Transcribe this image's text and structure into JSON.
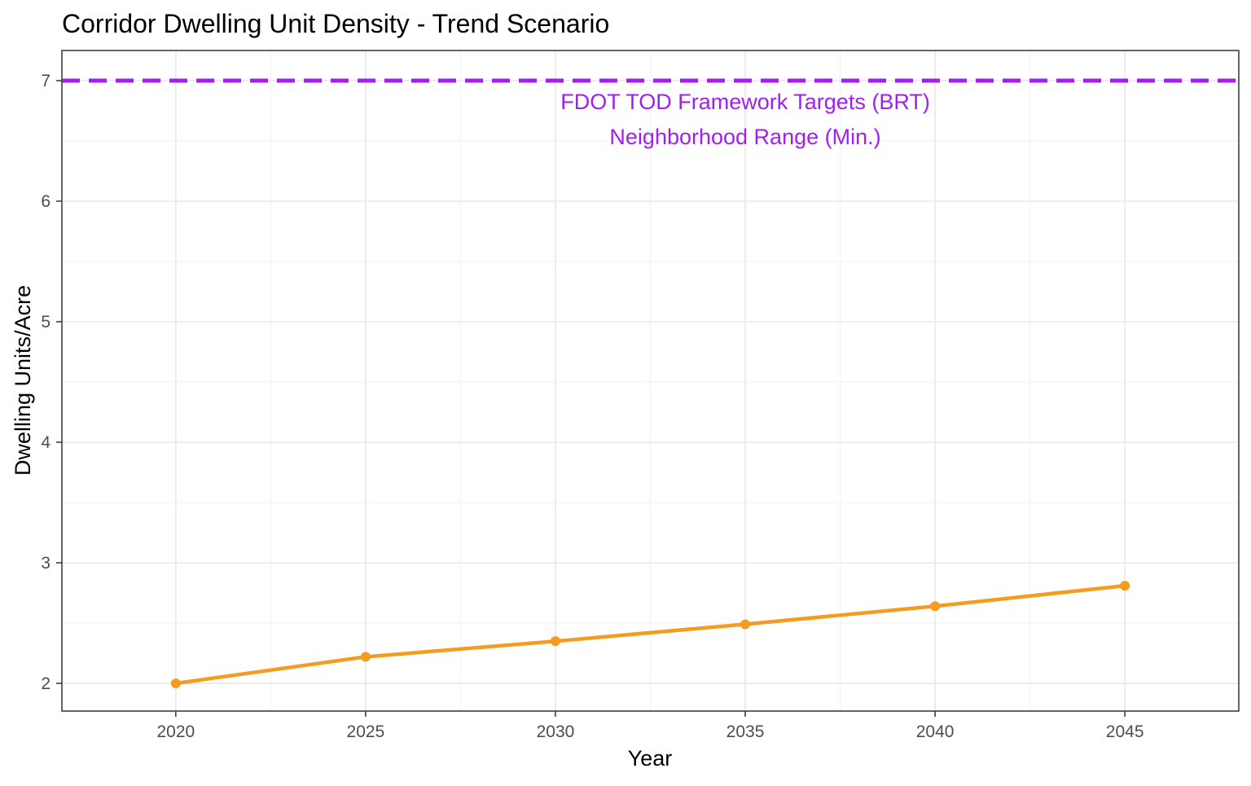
{
  "chart_data": {
    "type": "line",
    "title": "Corridor Dwelling Unit Density - Trend Scenario",
    "xlabel": "Year",
    "ylabel": "Dwelling Units/Acre",
    "x": [
      2020,
      2025,
      2030,
      2035,
      2040,
      2045
    ],
    "xticks": [
      "2020",
      "2025",
      "2030",
      "2035",
      "2040",
      "2045"
    ],
    "yticks": [
      "2",
      "3",
      "4",
      "5",
      "6",
      "7"
    ],
    "xlim": [
      2017,
      2048
    ],
    "ylim": [
      1.77,
      7.25
    ],
    "grid": true,
    "series": [
      {
        "values": [
          2.0,
          2.22,
          2.35,
          2.49,
          2.64,
          2.81
        ],
        "color": "#F39C1F"
      }
    ],
    "reference_line": {
      "y": 7,
      "style": "dashed",
      "color": "#A020F0",
      "annotation": [
        "FDOT TOD Framework Targets (BRT)",
        "Neighborhood Range (Min.)"
      ],
      "annotation_x": 2035
    }
  }
}
